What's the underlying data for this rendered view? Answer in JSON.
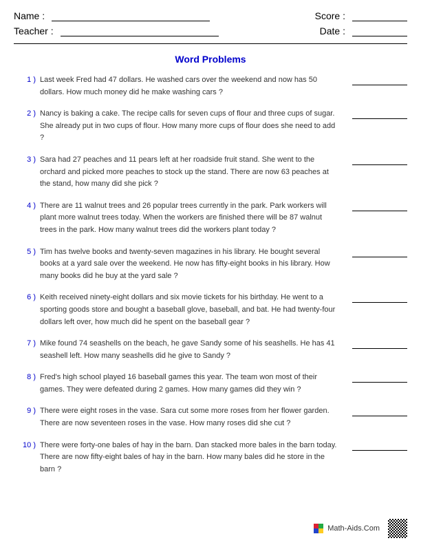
{
  "header": {
    "name_label": "Name :",
    "teacher_label": "Teacher :",
    "score_label": "Score :",
    "date_label": "Date :"
  },
  "title": "Word Problems",
  "title_color": "#0000cc",
  "number_color": "#0000cc",
  "text_color": "#333333",
  "background_color": "#ffffff",
  "font_family": "Arial",
  "title_fontsize": 14,
  "body_fontsize": 11,
  "problems": [
    {
      "num": "1 )",
      "text": "Last week Fred had 47 dollars. He washed cars over the weekend and now has 50 dollars. How much money did he make washing cars ?"
    },
    {
      "num": "2 )",
      "text": "Nancy is baking a cake. The recipe calls for seven cups of flour and three cups of sugar. She already put in two cups of flour. How many more cups of flour does she need to add ?"
    },
    {
      "num": "3 )",
      "text": "Sara had 27 peaches and 11 pears left at her roadside fruit stand. She went to the orchard and picked more peaches to stock up the stand. There are now 63 peaches at the stand, how many did she pick ?"
    },
    {
      "num": "4 )",
      "text": "There are 11 walnut trees and 26 popular trees currently in the park. Park workers will plant more walnut trees today. When the workers are finished there will be 87 walnut trees in the park. How many walnut trees did the workers plant today ?"
    },
    {
      "num": "5 )",
      "text": "Tim has twelve books and twenty-seven magazines in his library. He bought several books at a yard sale over the weekend. He now has fifty-eight books in his library. How many books did he buy at the yard sale ?"
    },
    {
      "num": "6 )",
      "text": "Keith received ninety-eight dollars and six movie tickets for his birthday. He went to a sporting goods store and bought a baseball glove, baseball, and bat. He had twenty-four dollars left over, how much did he spent on the baseball gear ?"
    },
    {
      "num": "7 )",
      "text": "Mike found 74 seashells on the beach, he gave Sandy some of his seashells. He has 41 seashell left. How many seashells did he give to Sandy ?"
    },
    {
      "num": "8 )",
      "text": "Fred's high school played 16 baseball games this year. The team won most of their games. They were defeated during 2 games. How many games did they win ?"
    },
    {
      "num": "9 )",
      "text": "There were eight roses in the vase. Sara cut some more roses from her flower garden. There are now seventeen roses in the vase. How many roses did she cut ?"
    },
    {
      "num": "10 )",
      "text": "There were forty-one bales of hay in the barn. Dan stacked more bales in the barn today. There are now fifty-eight bales of hay in the barn. How many bales did he store in the barn ?"
    }
  ],
  "footer": {
    "site": "Math-Aids.Com",
    "logo_colors": [
      "#d23",
      "#2a4",
      "#24c",
      "#fc2"
    ]
  }
}
